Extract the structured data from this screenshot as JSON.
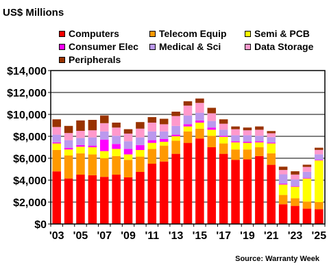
{
  "chart_data": {
    "type": "bar",
    "stacked": true,
    "title": "US$ Millions",
    "source": "Source: Warranty Week",
    "categories": [
      "2003",
      "2004",
      "2005",
      "2006",
      "2007",
      "2008",
      "2009",
      "2010",
      "2011",
      "2012",
      "2013",
      "2014",
      "2015",
      "2016",
      "2017",
      "2018",
      "2019",
      "2020",
      "2021",
      "2022",
      "2023",
      "2024",
      "2025"
    ],
    "xtick_labels": [
      "'03",
      "'05",
      "'07",
      "'09",
      "'11",
      "'13",
      "'15",
      "'17",
      "'19",
      "'21",
      "'23",
      "'25"
    ],
    "ytick_labels": [
      "$0",
      "$2,000",
      "$4,000",
      "$6,000",
      "$8,000",
      "$10,000",
      "$12,000",
      "$14,000"
    ],
    "ylim": [
      0,
      14000
    ],
    "grid": true,
    "legend_position": "top",
    "series": [
      {
        "name": "Computers",
        "color": "#ff0000",
        "values": [
          4800,
          4150,
          4500,
          4450,
          4300,
          4500,
          4250,
          4750,
          5500,
          5700,
          6400,
          7400,
          7800,
          7000,
          6400,
          5850,
          5900,
          6200,
          5400,
          1800,
          1650,
          1400,
          1350
        ]
      },
      {
        "name": "Telecom Equip",
        "color": "#ff9900",
        "values": [
          1950,
          2100,
          1950,
          1900,
          1700,
          1700,
          1600,
          1400,
          1350,
          1450,
          1200,
          1050,
          900,
          1050,
          950,
          950,
          900,
          800,
          1050,
          850,
          700,
          650,
          650
        ]
      },
      {
        "name": "Semi & PCB",
        "color": "#ffff00",
        "values": [
          600,
          550,
          600,
          650,
          650,
          650,
          500,
          600,
          550,
          350,
          400,
          450,
          550,
          550,
          600,
          650,
          600,
          450,
          900,
          950,
          1050,
          2100,
          3800
        ]
      },
      {
        "name": "Consumer Elec",
        "color": "#ff00ff",
        "values": [
          100,
          150,
          150,
          150,
          1050,
          450,
          500,
          450,
          250,
          250,
          150,
          200,
          200,
          200,
          100,
          100,
          100,
          100,
          80,
          80,
          60,
          60,
          60
        ]
      },
      {
        "name": "Medical & Sci",
        "color": "#bb99ee",
        "values": [
          700,
          700,
          650,
          750,
          750,
          750,
          700,
          700,
          800,
          700,
          800,
          800,
          700,
          600,
          550,
          550,
          600,
          500,
          500,
          850,
          600,
          550,
          500
        ]
      },
      {
        "name": "Data Storage",
        "color": "#ff99cc",
        "values": [
          700,
          650,
          650,
          650,
          750,
          750,
          700,
          800,
          800,
          650,
          900,
          900,
          900,
          700,
          550,
          550,
          450,
          550,
          350,
          400,
          450,
          450,
          400
        ]
      },
      {
        "name": "Peripherals",
        "color": "#993300",
        "values": [
          700,
          650,
          950,
          950,
          700,
          450,
          400,
          600,
          500,
          500,
          400,
          400,
          400,
          500,
          400,
          250,
          250,
          300,
          200,
          300,
          300,
          200,
          200
        ]
      }
    ]
  }
}
